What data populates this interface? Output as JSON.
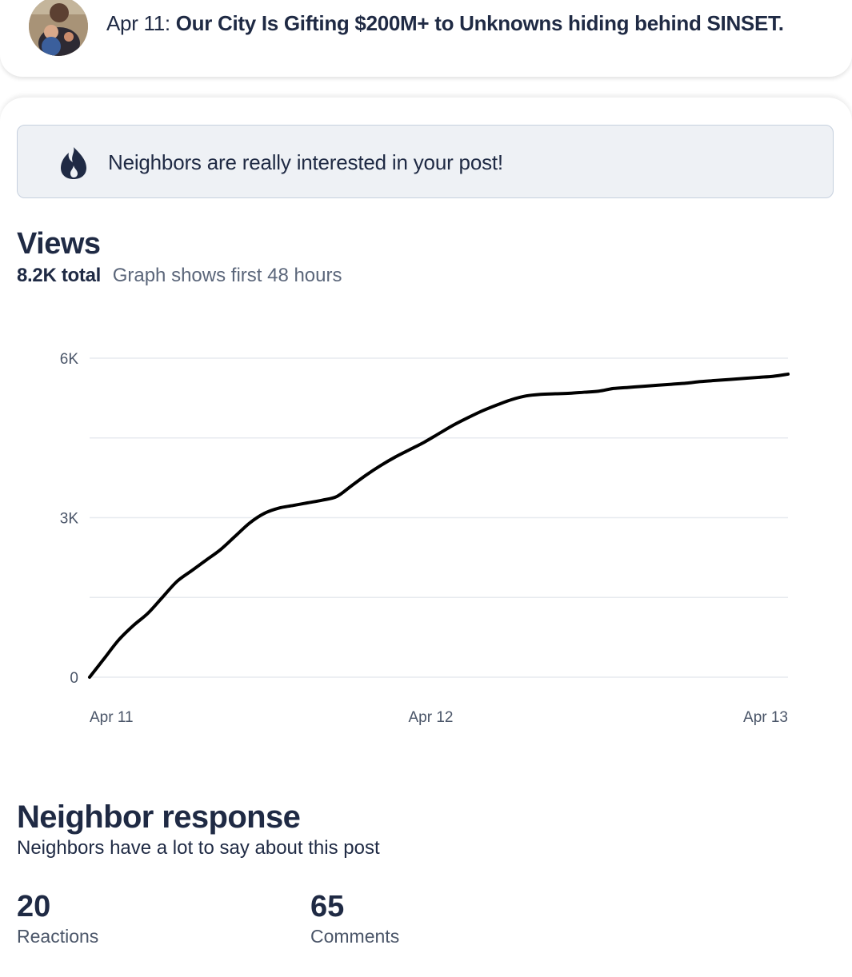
{
  "post": {
    "date": "Apr 11:",
    "title": "Our City Is Gifting $200M+ to Unknowns hiding behind SINSET."
  },
  "banner": {
    "icon": "flame-icon",
    "text": "Neighbors are really interested in your post!"
  },
  "views": {
    "title": "Views",
    "total": "8.2K total",
    "note": "Graph shows first 48 hours"
  },
  "chart_data": {
    "type": "line",
    "title": "",
    "xlabel": "",
    "ylabel": "",
    "ylim": [
      0,
      6000
    ],
    "y_ticks": [
      "0",
      "3K",
      "6K"
    ],
    "x_ticks": [
      "Apr 11",
      "Apr 12",
      "Apr 13"
    ],
    "grid": true,
    "line_color": "#000000",
    "x_unit": "hours since post",
    "series": [
      {
        "x": [
          0,
          1,
          2,
          3,
          4,
          5,
          6,
          7,
          8,
          9,
          10,
          11,
          12,
          13,
          14,
          15,
          16,
          17,
          18,
          19,
          20,
          21,
          22,
          23,
          24,
          25,
          26,
          27,
          28,
          29,
          30,
          31,
          32,
          33,
          34,
          35,
          36,
          37,
          38,
          39,
          40,
          41,
          42,
          43,
          44,
          45,
          46,
          47,
          48
        ],
        "y": [
          0,
          350,
          700,
          970,
          1200,
          1500,
          1800,
          2000,
          2200,
          2400,
          2650,
          2900,
          3080,
          3180,
          3230,
          3280,
          3330,
          3400,
          3600,
          3800,
          3980,
          4140,
          4280,
          4420,
          4580,
          4740,
          4880,
          5010,
          5120,
          5220,
          5290,
          5320,
          5330,
          5340,
          5360,
          5380,
          5430,
          5450,
          5470,
          5490,
          5510,
          5530,
          5560,
          5580,
          5600,
          5620,
          5640,
          5660,
          5700
        ]
      }
    ]
  },
  "response": {
    "title": "Neighbor response",
    "subtitle": "Neighbors have a lot to say about this post",
    "reactions_count": "20",
    "reactions_label": "Reactions",
    "comments_count": "65",
    "comments_label": "Comments"
  }
}
